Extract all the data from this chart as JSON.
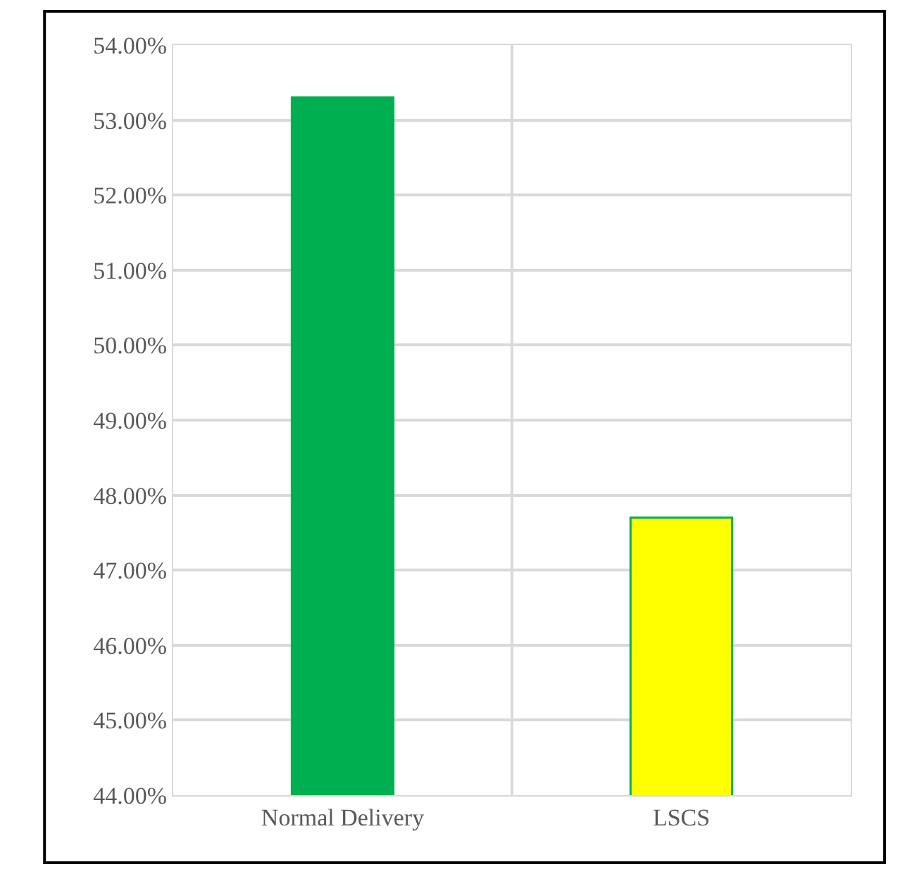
{
  "chart_data": {
    "type": "bar",
    "categories": [
      "Normal Delivery",
      "LSCS"
    ],
    "values": [
      53.3,
      47.7
    ],
    "colors": [
      "#00b050",
      "#ffff00"
    ],
    "ylim": [
      44,
      54
    ],
    "yticks": [
      {
        "value": 44,
        "label": "44.00%"
      },
      {
        "value": 45,
        "label": "45.00%"
      },
      {
        "value": 46,
        "label": "46.00%"
      },
      {
        "value": 47,
        "label": "47.00%"
      },
      {
        "value": 48,
        "label": "48.00%"
      },
      {
        "value": 49,
        "label": "49.00%"
      },
      {
        "value": 50,
        "label": "50.00%"
      },
      {
        "value": 51,
        "label": "51.00%"
      },
      {
        "value": 52,
        "label": "52.00%"
      },
      {
        "value": 53,
        "label": "53.00%"
      },
      {
        "value": 54,
        "label": "54.00%"
      }
    ],
    "grid": true,
    "legend": false
  }
}
